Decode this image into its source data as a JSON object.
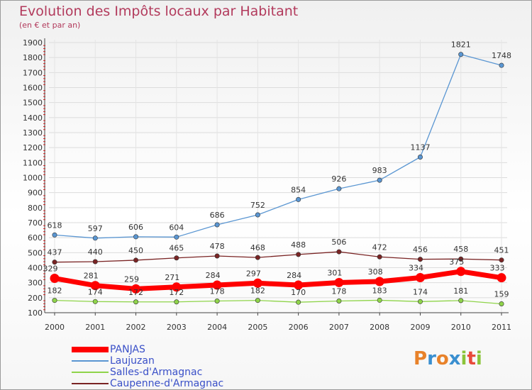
{
  "chart_data": {
    "type": "line",
    "title": "Evolution des Impôts locaux par Habitant",
    "subtitle": "(en € et par an)",
    "x": [
      "2000",
      "2001",
      "2002",
      "2003",
      "2004",
      "2005",
      "2006",
      "2007",
      "2008",
      "2009",
      "2010",
      "2011"
    ],
    "y_ticks": [
      "100",
      "200",
      "300",
      "400",
      "500",
      "600",
      "700",
      "800",
      "900",
      "1000",
      "1100",
      "1200",
      "1300",
      "1400",
      "1500",
      "1600",
      "1700",
      "1800",
      "1900"
    ],
    "ylim": [
      100,
      1900
    ],
    "grid": true,
    "legend_position": "bottom-left",
    "series": [
      {
        "name": "PANJAS",
        "color": "#ff0000",
        "values": [
          329,
          281,
          259,
          271,
          284,
          297,
          284,
          301,
          308,
          334,
          375,
          333
        ]
      },
      {
        "name": "Laujuzan",
        "color": "#5a96d2",
        "values": [
          618,
          597,
          606,
          604,
          686,
          752,
          854,
          926,
          983,
          1137,
          1821,
          1748
        ]
      },
      {
        "name": "Salles-d'Armagnac",
        "color": "#8fd44a",
        "values": [
          182,
          174,
          172,
          172,
          178,
          182,
          170,
          178,
          183,
          174,
          181,
          159
        ]
      },
      {
        "name": "Caupenne-d'Armagnac",
        "color": "#7a2424",
        "values": [
          437,
          440,
          450,
          465,
          478,
          468,
          488,
          506,
          472,
          456,
          458,
          451
        ]
      }
    ]
  },
  "brand": {
    "letters": [
      {
        "ch": "P",
        "color": "#e8822a"
      },
      {
        "ch": "r",
        "color": "#3a8fd0"
      },
      {
        "ch": "o",
        "color": "#e8822a"
      },
      {
        "ch": "x",
        "color": "#3a8fd0"
      },
      {
        "ch": "i",
        "color": "#8bc43a"
      },
      {
        "ch": "t",
        "color": "#e84a3a"
      },
      {
        "ch": "i",
        "color": "#8bc43a"
      }
    ]
  }
}
